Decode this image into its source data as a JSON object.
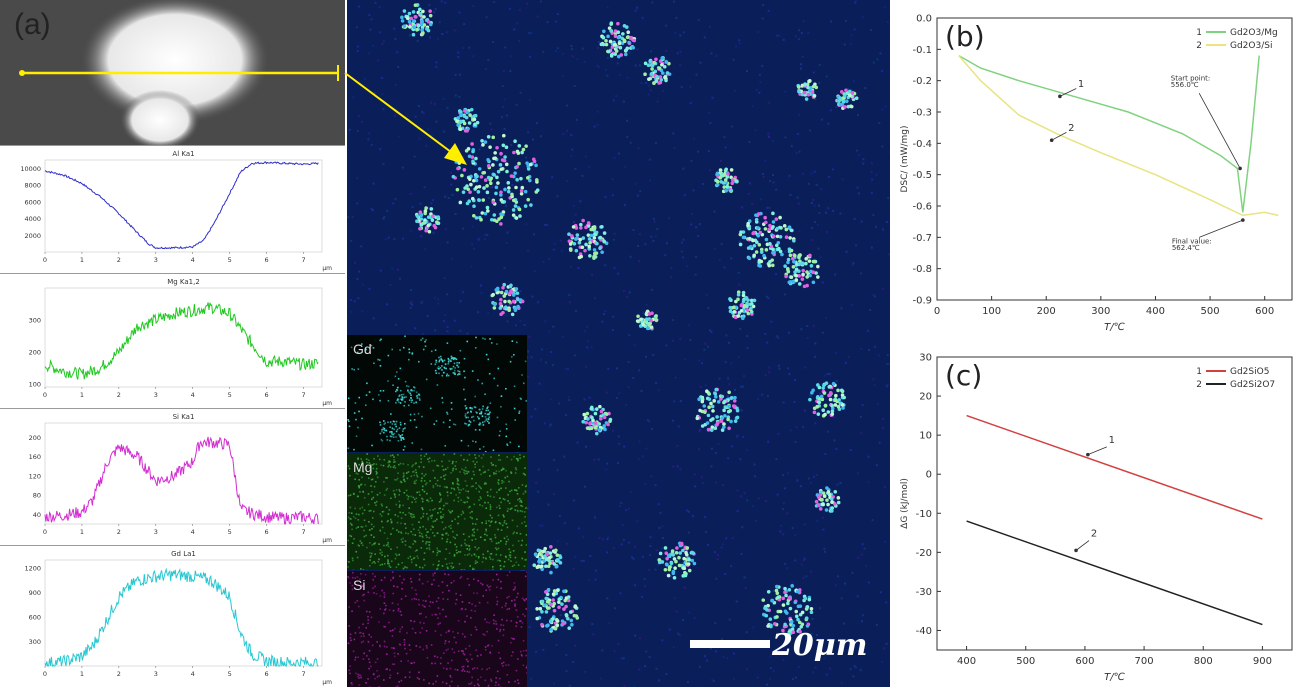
{
  "panel_a": {
    "label": "(a)",
    "profiles": [
      {
        "title": "Al Ka1",
        "color": "#2e2ec8",
        "yticks": [
          "10000",
          "8000",
          "6000",
          "4000",
          "2000"
        ],
        "unit": "μm",
        "ymin": 0,
        "ymax": 11000,
        "x": [
          0,
          0.5,
          1,
          1.5,
          2,
          2.5,
          2.8,
          3,
          3.5,
          4,
          4.3,
          4.6,
          5,
          5.3,
          5.6,
          6,
          6.5,
          7,
          7.4
        ],
        "y": [
          9700,
          9200,
          8200,
          6600,
          4600,
          2300,
          1000,
          500,
          500,
          600,
          1400,
          3600,
          7000,
          9600,
          10600,
          10700,
          10600,
          10500,
          10600
        ]
      },
      {
        "title": "Mg Ka1,2",
        "color": "#22c822",
        "yticks": [
          "300",
          "200",
          "100"
        ],
        "unit": "μm",
        "ymin": 90,
        "ymax": 400,
        "x": [
          0,
          0.5,
          1,
          1.5,
          2,
          2.5,
          3,
          3.5,
          4,
          4.5,
          5,
          5.5,
          6,
          6.5,
          7,
          7.4
        ],
        "y": [
          160,
          140,
          130,
          150,
          200,
          280,
          300,
          320,
          330,
          340,
          320,
          240,
          170,
          170,
          160,
          165
        ]
      },
      {
        "title": "Si Ka1",
        "color": "#d22ed2",
        "yticks": [
          "200",
          "160",
          "120",
          "80",
          "40"
        ],
        "unit": "μm",
        "ymin": 20,
        "ymax": 230,
        "x": [
          0,
          0.5,
          1,
          1.3,
          1.7,
          2,
          2.5,
          3,
          3.5,
          4,
          4.2,
          4.5,
          5,
          5.3,
          5.7,
          6,
          6.5,
          7,
          7.4
        ],
        "y": [
          35,
          38,
          45,
          70,
          150,
          180,
          160,
          110,
          120,
          150,
          190,
          190,
          185,
          50,
          40,
          35,
          32,
          35,
          30
        ]
      },
      {
        "title": "Gd La1",
        "color": "#28c8d2",
        "yticks": [
          "1200",
          "900",
          "600",
          "300"
        ],
        "unit": "μm",
        "ymin": 0,
        "ymax": 1300,
        "x": [
          0,
          0.5,
          1,
          1.3,
          1.6,
          2,
          2.5,
          3,
          3.5,
          4,
          4.5,
          5,
          5.3,
          5.6,
          6,
          6.5,
          7,
          7.4
        ],
        "y": [
          40,
          50,
          120,
          250,
          500,
          850,
          1050,
          1100,
          1120,
          1100,
          1050,
          850,
          400,
          150,
          60,
          40,
          40,
          30
        ]
      }
    ],
    "xticks": [
      "0",
      "1",
      "2",
      "3",
      "4",
      "5",
      "6",
      "7"
    ],
    "element_maps": [
      "Gd",
      "Mg",
      "Si"
    ],
    "scale_bar": "20μm"
  },
  "chart_data": [
    {
      "type": "line",
      "panel": "(b)",
      "ylabel": "DSC/ (mW/mg)",
      "xlabel": "T/℃",
      "xlim": [
        0,
        650
      ],
      "ylim": [
        -0.9,
        0.0
      ],
      "xticks": [
        "0",
        "100",
        "200",
        "300",
        "400",
        "500",
        "600"
      ],
      "yticks": [
        "0.0",
        "-0.1",
        "-0.2",
        "-0.3",
        "-0.4",
        "-0.5",
        "-0.6",
        "-0.7",
        "-0.8",
        "-0.9"
      ],
      "legend": [
        {
          "num": "1",
          "name": "Gd2O3/Mg",
          "color": "#7fd37f"
        },
        {
          "num": "2",
          "name": "Gd2O3/Si",
          "color": "#e8e480"
        }
      ],
      "series": [
        {
          "name": "Gd2O3/Mg",
          "x": [
            40,
            80,
            150,
            250,
            350,
            450,
            520,
            550,
            560,
            575,
            590
          ],
          "y": [
            -0.12,
            -0.16,
            -0.2,
            -0.25,
            -0.3,
            -0.37,
            -0.44,
            -0.48,
            -0.62,
            -0.4,
            -0.12
          ]
        },
        {
          "name": "Gd2O3/Si",
          "x": [
            40,
            80,
            150,
            220,
            300,
            400,
            500,
            560,
            600,
            625
          ],
          "y": [
            -0.12,
            -0.2,
            -0.31,
            -0.37,
            -0.43,
            -0.5,
            -0.58,
            -0.63,
            -0.62,
            -0.63
          ]
        }
      ],
      "annotations": [
        {
          "text": "1",
          "x": 258,
          "y": -0.22
        },
        {
          "text": "2",
          "x": 240,
          "y": -0.36
        },
        {
          "text": "Start point:",
          "x": 428,
          "y": -0.2
        },
        {
          "text": "556.0℃",
          "x": 428,
          "y": -0.22
        },
        {
          "text": "Final value:",
          "x": 430,
          "y": -0.72
        },
        {
          "text": "562.4℃",
          "x": 430,
          "y": -0.74
        }
      ]
    },
    {
      "type": "line",
      "panel": "(c)",
      "ylabel": "ΔG (kJ/mol)",
      "xlabel": "T/℃",
      "xlim": [
        350,
        950
      ],
      "ylim": [
        -45,
        30
      ],
      "xticks": [
        "400",
        "500",
        "600",
        "700",
        "800",
        "900"
      ],
      "yticks": [
        "30",
        "20",
        "10",
        "0",
        "-10",
        "-20",
        "-30",
        "-40"
      ],
      "legend": [
        {
          "num": "1",
          "name": "Gd2SiO5",
          "color": "#d24040"
        },
        {
          "num": "2",
          "name": "Gd2Si2O7",
          "color": "#222222"
        }
      ],
      "series": [
        {
          "name": "Gd2SiO5",
          "x": [
            400,
            900
          ],
          "y": [
            15,
            -11.5
          ]
        },
        {
          "name": "Gd2Si2O7",
          "x": [
            400,
            900
          ],
          "y": [
            -12,
            -38.5
          ]
        }
      ],
      "annotations": [
        {
          "text": "1",
          "x": 640,
          "y": 8
        },
        {
          "text": "2",
          "x": 610,
          "y": -16
        }
      ]
    }
  ]
}
